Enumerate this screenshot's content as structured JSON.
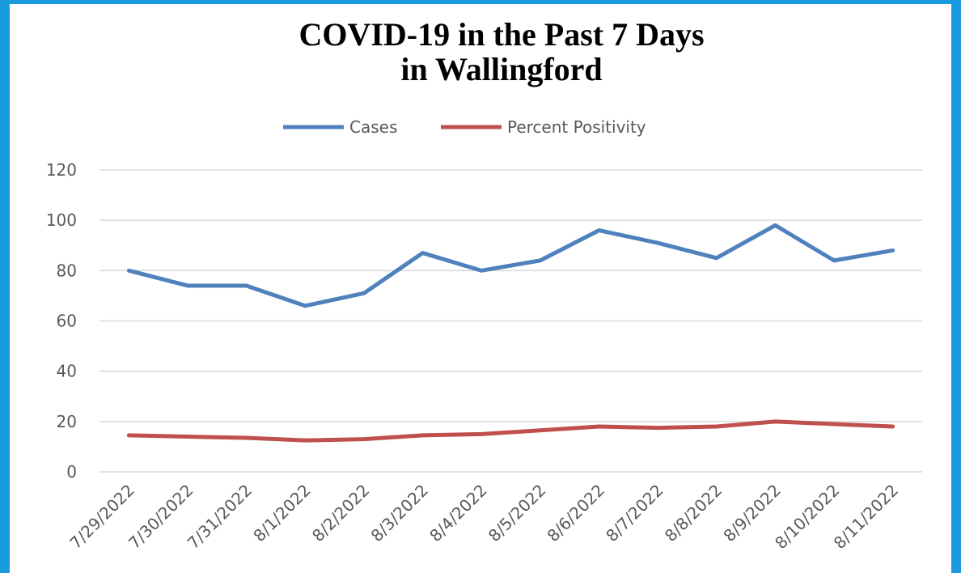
{
  "chart_data": {
    "type": "line",
    "title": [
      "COVID-19 in the Past 7 Days",
      "in Wallingford"
    ],
    "categories": [
      "7/29/2022",
      "7/30/2022",
      "7/31/2022",
      "8/1/2022",
      "8/2/2022",
      "8/3/2022",
      "8/4/2022",
      "8/5/2022",
      "8/6/2022",
      "8/7/2022",
      "8/8/2022",
      "8/9/2022",
      "8/10/2022",
      "8/11/2022"
    ],
    "series": [
      {
        "name": "Cases",
        "color": "#4f81bd",
        "values": [
          80,
          74,
          74,
          66,
          71,
          87,
          80,
          84,
          96,
          91,
          85,
          98,
          84,
          88
        ]
      },
      {
        "name": "Percent Positivity",
        "color": "#c0504d",
        "values": [
          14.5,
          14,
          13.5,
          12.5,
          13,
          14.5,
          15,
          16.5,
          18,
          17.5,
          18,
          20,
          19,
          18
        ]
      }
    ],
    "ylim": [
      0,
      120
    ],
    "yticks": [
      0,
      20,
      40,
      60,
      80,
      100,
      120
    ],
    "grid": true,
    "legend": "top"
  }
}
